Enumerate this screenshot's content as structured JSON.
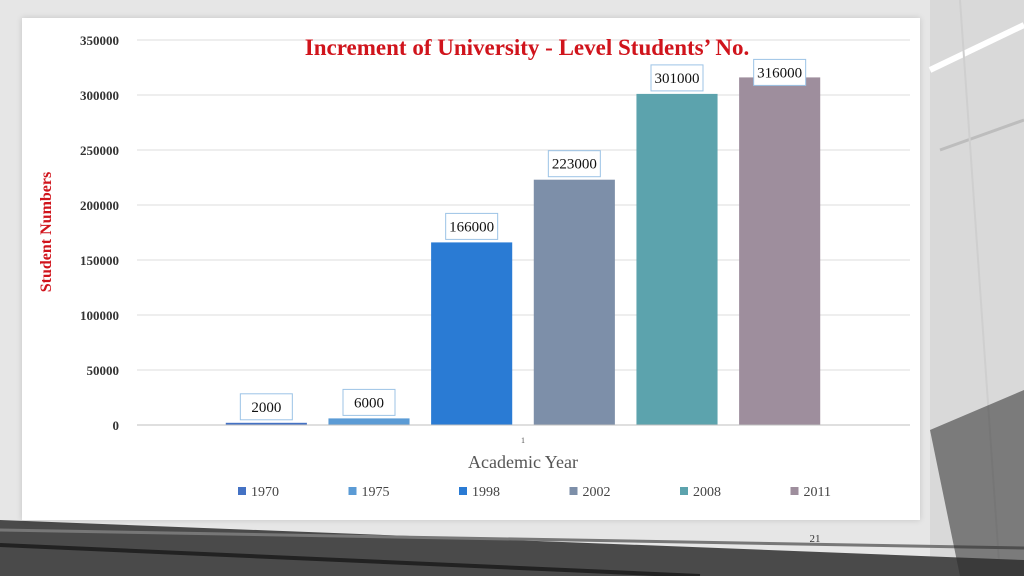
{
  "slide": {
    "page_number": "21"
  },
  "colors": {
    "title": "#d0141c",
    "ylabel": "#d0141c",
    "axis_text": "#333333",
    "grid": "#dcdcdc",
    "label_border": "#9cc3e6"
  },
  "chart_data": {
    "type": "bar",
    "title": "Increment of University - Level Students’ No.",
    "xlabel": "Academic Year",
    "ylabel": "Student Numbers",
    "categories": [
      "1"
    ],
    "ylim": [
      0,
      350000
    ],
    "yticks": [
      0,
      50000,
      100000,
      150000,
      200000,
      250000,
      300000,
      350000
    ],
    "ytick_labels": [
      "0",
      "50000",
      "100000",
      "150000",
      "200000",
      "250000",
      "300000",
      "350000"
    ],
    "grid": true,
    "legend_position": "bottom",
    "series": [
      {
        "name": "1970",
        "values": [
          2000
        ],
        "label": "2000",
        "color": "#4472c4"
      },
      {
        "name": "1975",
        "values": [
          6000
        ],
        "label": "6000",
        "color": "#5b9bd5"
      },
      {
        "name": "1998",
        "values": [
          166000
        ],
        "label": "166000",
        "color": "#2a7bd4"
      },
      {
        "name": "2002",
        "values": [
          223000
        ],
        "label": "223000",
        "color": "#7d8fa9"
      },
      {
        "name": "2008",
        "values": [
          301000
        ],
        "label": "301000",
        "color": "#5ca3ad"
      },
      {
        "name": "2011",
        "values": [
          316000
        ],
        "label": "316000",
        "color": "#9e8e9d"
      }
    ]
  }
}
